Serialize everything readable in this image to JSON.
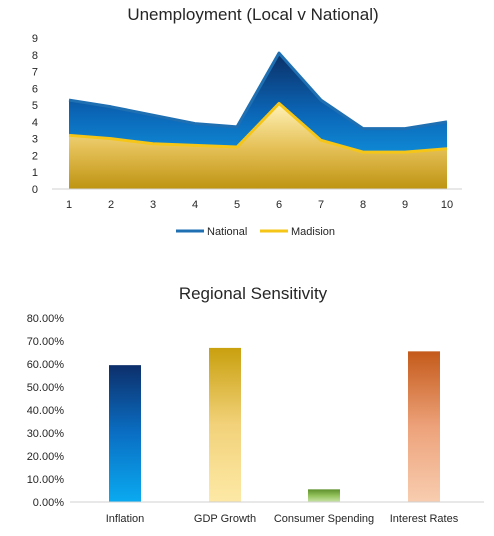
{
  "chart_data": [
    {
      "type": "area",
      "title": "Unemployment (Local v National)",
      "x": [
        1,
        2,
        3,
        4,
        5,
        6,
        7,
        8,
        9,
        10
      ],
      "xlabel": "",
      "ylabel": "",
      "ylim": [
        0,
        9
      ],
      "yticks": [
        0,
        1,
        2,
        3,
        4,
        5,
        6,
        7,
        8,
        9
      ],
      "grid": false,
      "legend": "bottom",
      "series": [
        {
          "name": "National",
          "values": [
            5.3,
            4.9,
            4.4,
            3.9,
            3.7,
            8.1,
            5.3,
            3.6,
            3.6,
            4.0
          ],
          "color": "#1f6fb3"
        },
        {
          "name": "Madision",
          "values": [
            3.2,
            3.0,
            2.7,
            2.6,
            2.5,
            5.1,
            2.9,
            2.2,
            2.2,
            2.4
          ],
          "color": "#f5c518"
        }
      ]
    },
    {
      "type": "bar",
      "title": "Regional Sensitivity",
      "categories": [
        "Inflation",
        "GDP Growth",
        "Consumer Spending",
        "Interest Rates"
      ],
      "values": [
        59.5,
        67.0,
        5.5,
        65.5
      ],
      "xlabel": "",
      "ylabel": "",
      "ylim": [
        0,
        80
      ],
      "ytick_labels": [
        "0.00%",
        "10.00%",
        "20.00%",
        "30.00%",
        "40.00%",
        "50.00%",
        "60.00%",
        "70.00%",
        "80.00%"
      ],
      "grid": false,
      "bar_colors": [
        {
          "top": "#0d2f6b",
          "mid": "#0a6fc4",
          "bottom": "#0aaaf0"
        },
        {
          "top": "#c9a00e",
          "mid": "#f2d27a",
          "bottom": "#fde9a6"
        },
        {
          "top": "#5c8f2a",
          "mid": "#93c25c",
          "bottom": "#c9e3a7"
        },
        {
          "top": "#c45a1a",
          "mid": "#eda27a",
          "bottom": "#f8cdb0"
        }
      ]
    }
  ]
}
